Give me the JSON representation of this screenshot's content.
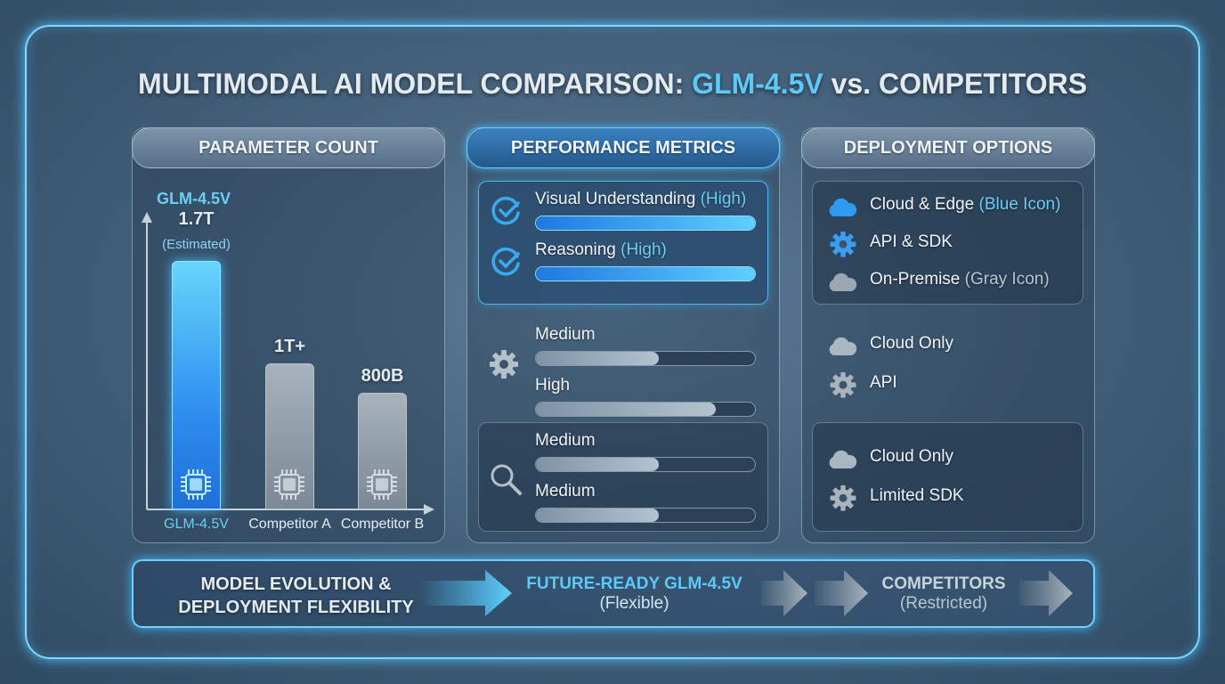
{
  "title": {
    "prefix": "MULTIMODAL AI MODEL COMPARISON: ",
    "highlight": "GLM-4.5V",
    "suffix": " vs. COMPETITORS"
  },
  "colors": {
    "accent": "#5cc9f7",
    "glm_bar": "#2f8ff0",
    "competitor_bar": "#8d9ba8",
    "frame": "#7fd8ff"
  },
  "parameter_panel": {
    "header": "PARAMETER COUNT",
    "top_label": "GLM-4.5V",
    "bar_icon": "chip-icon"
  },
  "chart_data": {
    "type": "bar",
    "categories": [
      "GLM-4.5V",
      "Competitor A",
      "Competitor B"
    ],
    "values": [
      1.7,
      1.0,
      0.8
    ],
    "unit": "T",
    "value_labels": [
      "1.7T",
      "1T+",
      "800B"
    ],
    "annotations": [
      "(Estimated)"
    ],
    "ylim": [
      0,
      1.8
    ],
    "grid": false,
    "highlight_category": "GLM-4.5V"
  },
  "performance_panel": {
    "header": "PERFORMANCE METRICS",
    "groups": [
      {
        "icon": "check-circle-icon",
        "highlighted": true,
        "metrics": [
          {
            "label": "Visual Understanding",
            "tag": "(High)",
            "level": 1.0
          },
          {
            "label": "Reasoning",
            "tag": "(High)",
            "level": 1.0
          }
        ]
      },
      {
        "icon": "gear-icon",
        "highlighted": false,
        "metrics": [
          {
            "label": "Medium",
            "tag": "",
            "level": 0.56
          },
          {
            "label": "High",
            "tag": "",
            "level": 0.82
          }
        ]
      },
      {
        "icon": "magnifier-icon",
        "highlighted": false,
        "metrics": [
          {
            "label": "Medium",
            "tag": "",
            "level": 0.56
          },
          {
            "label": "Medium",
            "tag": "",
            "level": 0.56
          }
        ]
      }
    ]
  },
  "deployment_panel": {
    "header": "DEPLOYMENT OPTIONS",
    "groups": [
      {
        "items": [
          {
            "icon": "cloud-icon",
            "color": "#2e9bf0",
            "label": "Cloud & Edge",
            "tag": "(Blue Icon)",
            "tag_style": "blue"
          },
          {
            "icon": "gear-icon",
            "color": "#3a9df0",
            "label": "API & SDK",
            "tag": ""
          },
          {
            "icon": "cloud-icon",
            "color": "#9aa6b1",
            "label": "On-Premise",
            "tag": "(Gray Icon)",
            "tag_style": "gray"
          }
        ]
      },
      {
        "items": [
          {
            "icon": "cloud-icon",
            "color": "#aab6c1",
            "label": "Cloud Only",
            "tag": ""
          },
          {
            "icon": "gear-icon",
            "color": "#a8b3bd",
            "label": "API",
            "tag": ""
          }
        ]
      },
      {
        "items": [
          {
            "icon": "cloud-icon",
            "color": "#aab6c1",
            "label": "Cloud Only",
            "tag": ""
          },
          {
            "icon": "gear-icon",
            "color": "#a8b3bd",
            "label": "Limited SDK",
            "tag": ""
          }
        ]
      }
    ]
  },
  "footer": {
    "left_line1": "MODEL EVOLUTION &",
    "left_line2": "DEPLOYMENT FLEXIBILITY",
    "mid_title": "FUTURE-READY GLM-4.5V",
    "mid_sub": "(Flexible)",
    "right_title": "COMPETITORS",
    "right_sub": "(Restricted)"
  }
}
